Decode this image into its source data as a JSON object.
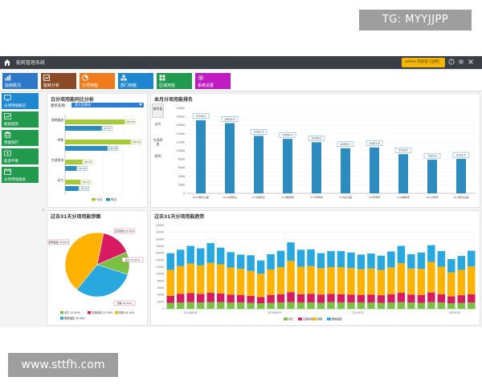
{
  "watermarks": {
    "tg": "TG: MYYJJPP",
    "url": "www.sttfh.com"
  },
  "app": {
    "title": "能耗管理系统"
  },
  "user": {
    "text": "admin 欢迎您 [注销]"
  },
  "nav": {
    "items": [
      {
        "label": "能耗概况",
        "color": "#2d78c8",
        "icon": "chart-icon"
      },
      {
        "label": "能耗分析",
        "color": "#8b4a26",
        "icon": "analysis-icon"
      },
      {
        "label": "分项用能",
        "color": "#f07b1c",
        "icon": "pie-icon"
      },
      {
        "label": "部门用能",
        "color": "#1f87cf",
        "icon": "department-icon"
      },
      {
        "label": "区域用能",
        "color": "#219a4e",
        "icon": "grid-icon"
      },
      {
        "label": "系统设置",
        "color": "#c21ac2",
        "icon": "gear-icon"
      }
    ]
  },
  "sidebar": {
    "items": [
      {
        "label": "分项用能概况",
        "color": "#1f87cf",
        "icon": "monitor-icon"
      },
      {
        "label": "能耗趋势",
        "color": "#219a4e",
        "icon": "trend-icon"
      },
      {
        "label": "用能排行",
        "color": "#219a4e",
        "icon": "database-icon"
      },
      {
        "label": "能源平衡",
        "color": "#219a4e",
        "icon": "balance-icon"
      },
      {
        "label": "分项用能报表",
        "color": "#219a4e",
        "icon": "calendar-icon"
      }
    ]
  },
  "panel1": {
    "title": "日分项用能同比分析",
    "select_label": "建筑名称:",
    "select_value": "某大型商场"
  },
  "panel2": {
    "title": "本月分项用能排名",
    "tabs": [
      "按时段",
      "动力",
      "空调用电",
      "照明"
    ]
  },
  "panel3": {
    "title": "过去31天分项用能饼图"
  },
  "panel4": {
    "title": "过去31天分项用能趋势"
  },
  "chart_data": [
    {
      "type": "bar",
      "orientation": "horizontal",
      "categories": [
        "照明插座",
        "特殊",
        "空调用电",
        "动力"
      ],
      "series": [
        {
          "name": "今日",
          "color": "#a6c93a",
          "values": [
            155,
            170,
            45,
            40
          ]
        },
        {
          "name": "昨日",
          "color": "#2e8bbd",
          "values": [
            95,
            110,
            30,
            35
          ]
        }
      ],
      "value_labels": [
        [
          "155.35",
          "95.21"
        ],
        [
          "170.52",
          "110.35"
        ],
        [
          "45.32",
          "30.26"
        ],
        [
          "40.15",
          "35.20"
        ]
      ],
      "xlim": [
        0,
        200
      ]
    },
    {
      "type": "bar",
      "categories": [
        "6-2-6楼北立面",
        "10-16层商业",
        "4-16层商业",
        "4-18楼商场",
        "17-5号商场",
        "4-25北立面",
        "4-2号商场",
        "2-16楼商场",
        "16-22商场",
        "10-6层北立面"
      ],
      "values": [
        17200,
        16500,
        13500,
        12800,
        12000,
        10600,
        10800,
        9200,
        7900,
        8100
      ],
      "value_labels": [
        "17259.2",
        "16502.4",
        "13521.5",
        "12854.3",
        "12006.1",
        "10635.7",
        "10872.8",
        "9218.4",
        "7925.6",
        "8132.5"
      ],
      "ylim": [
        0,
        20000
      ],
      "y_ticks": [
        "0",
        "2000",
        "4000",
        "6000",
        "8000",
        "10000",
        "12000",
        "14000",
        "16000",
        "18000",
        "20000"
      ],
      "color": "#2e8bbd"
    },
    {
      "type": "pie",
      "slices": [
        {
          "name": "动力",
          "value": 11.45,
          "color": "#7ac143"
        },
        {
          "name": "空调用电",
          "value": 15.3,
          "color": "#d81b60"
        },
        {
          "name": "特殊",
          "value": 42.31,
          "color": "#ffb300"
        },
        {
          "name": "照明插座",
          "value": 30.94,
          "color": "#29a8df"
        }
      ],
      "legend": [
        "动力 11.45%",
        "空调用电 15.30%",
        "特殊 42.31%",
        "照明插座 30.94%"
      ],
      "labels": [
        "照明插座 30.94%",
        "空调用电 15.30%",
        "动力 11.45%",
        "特殊 42.31%"
      ]
    },
    {
      "type": "bar",
      "stacked": true,
      "ylim": [
        0,
        24000
      ],
      "y_ticks": [
        "0",
        "2000",
        "4000",
        "6000",
        "8000",
        "10000",
        "12000",
        "14000",
        "16000",
        "18000",
        "20000",
        "22000",
        "24000"
      ],
      "x_labels": [
        "2019/6/26",
        "2019/6/29",
        "2019/7/2",
        "2019/7/5"
      ],
      "series": [
        {
          "name": "动力",
          "color": "#7ac143",
          "values": [
            1700,
            1800,
            1900,
            1800,
            1900,
            1900,
            1800,
            1800,
            1700,
            1600,
            1700,
            1800,
            1900,
            1800,
            1800,
            1700,
            1900,
            1800,
            1800,
            1800,
            1800,
            1700,
            1800,
            1900,
            1800,
            1700,
            1900,
            1800,
            1600,
            1700,
            1800
          ]
        },
        {
          "name": "空调用电",
          "color": "#d81b60",
          "values": [
            2000,
            2500,
            2600,
            2500,
            2700,
            2500,
            2300,
            2200,
            2000,
            1800,
            2300,
            2400,
            2900,
            2400,
            2500,
            2400,
            2400,
            2400,
            2300,
            2200,
            2300,
            2200,
            2400,
            2700,
            2300,
            2300,
            2800,
            2400,
            2000,
            2200,
            2400
          ]
        },
        {
          "name": "特殊",
          "color": "#ffb300",
          "values": [
            7500,
            8000,
            8500,
            8200,
            8600,
            8400,
            7800,
            7500,
            7200,
            6700,
            7300,
            7800,
            9000,
            7900,
            8000,
            7600,
            7700,
            7800,
            7600,
            7400,
            7500,
            7300,
            7700,
            8500,
            7500,
            7500,
            8800,
            7900,
            6900,
            7300,
            8000
          ]
        },
        {
          "name": "照明插座",
          "color": "#29a8df",
          "values": [
            4800,
            4700,
            5100,
            4900,
            5700,
            4800,
            4400,
            4100,
            4500,
            3800,
            4400,
            4700,
            5300,
            4900,
            4800,
            4300,
            4600,
            4600,
            4500,
            4200,
            4300,
            4100,
            4600,
            5000,
            4100,
            4700,
            4800,
            4500,
            3800,
            4000,
            4500
          ]
        }
      ]
    }
  ]
}
